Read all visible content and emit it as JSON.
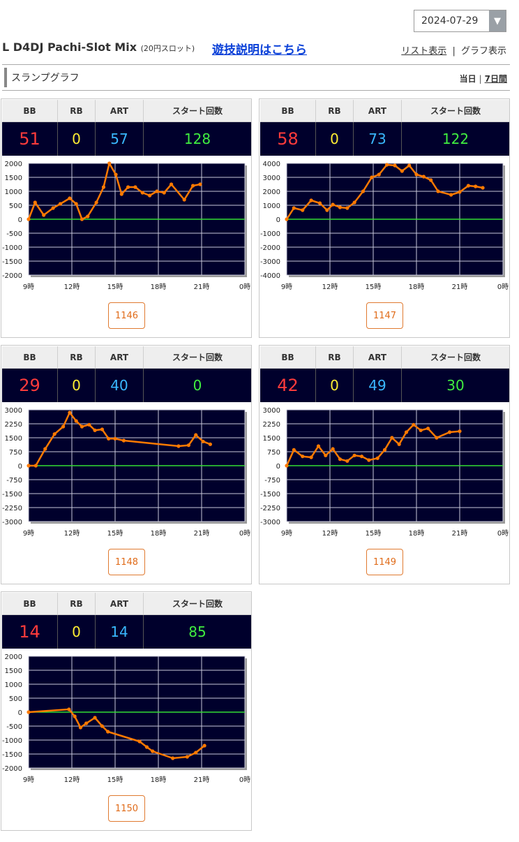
{
  "date_select": {
    "value": "2024-07-29",
    "arrow_glyph": "▼"
  },
  "header": {
    "machine_name": "L D4DJ Pachi-Slot Mix",
    "machine_sub": "(20円スロット)",
    "help_link": "遊技説明はこちら",
    "list_view": "リスト表示",
    "graph_view": "グラフ表示",
    "separator": "|"
  },
  "section": {
    "title": "スランプグラフ",
    "range_today": "当日",
    "range_7days": "7日間",
    "separator": "|"
  },
  "table_headers": {
    "bb": "BB",
    "rb": "RB",
    "art": "ART",
    "start": "スタート回数"
  },
  "colors": {
    "bb": "#ff3b3b",
    "rb": "#ffee33",
    "art": "#3ab8ff",
    "start": "#40ee40",
    "line": "#ff7a00",
    "zero_line": "#33dd33",
    "plot_bg": "#00002c"
  },
  "x_axis_labels": [
    "9時",
    "12時",
    "15時",
    "18時",
    "21時",
    "0時"
  ],
  "machines": [
    {
      "number": "1146",
      "bb": "51",
      "rb": "0",
      "art": "57",
      "start": "128",
      "chart_data": {
        "type": "line",
        "x_unit": "hours from 9時",
        "ylim": [
          -2000,
          2000
        ],
        "y_ticks": [
          2000,
          1500,
          1000,
          500,
          0,
          -500,
          -1000,
          -1500,
          -2000
        ],
        "points": [
          [
            0,
            0
          ],
          [
            0.45,
            600
          ],
          [
            1.05,
            150
          ],
          [
            1.7,
            400
          ],
          [
            2.2,
            550
          ],
          [
            2.85,
            750
          ],
          [
            3.3,
            550
          ],
          [
            3.7,
            0
          ],
          [
            4.1,
            100
          ],
          [
            4.7,
            600
          ],
          [
            5.2,
            1150
          ],
          [
            5.6,
            2000
          ],
          [
            6.05,
            1600
          ],
          [
            6.45,
            900
          ],
          [
            6.9,
            1150
          ],
          [
            7.4,
            1150
          ],
          [
            7.9,
            950
          ],
          [
            8.4,
            850
          ],
          [
            8.9,
            1000
          ],
          [
            9.4,
            950
          ],
          [
            9.9,
            1250
          ],
          [
            10.8,
            700
          ],
          [
            11.4,
            1200
          ],
          [
            11.9,
            1250
          ]
        ]
      }
    },
    {
      "number": "1147",
      "bb": "58",
      "rb": "0",
      "art": "73",
      "start": "122",
      "chart_data": {
        "type": "line",
        "x_unit": "hours from 9時",
        "ylim": [
          -4000,
          4000
        ],
        "y_ticks": [
          4000,
          3000,
          2000,
          1000,
          0,
          -1000,
          -2000,
          -3000,
          -4000
        ],
        "points": [
          [
            0,
            0
          ],
          [
            0.5,
            800
          ],
          [
            1.1,
            650
          ],
          [
            1.7,
            1350
          ],
          [
            2.3,
            1150
          ],
          [
            2.8,
            650
          ],
          [
            3.2,
            1050
          ],
          [
            3.7,
            850
          ],
          [
            4.2,
            800
          ],
          [
            4.7,
            1200
          ],
          [
            5.3,
            2000
          ],
          [
            5.9,
            3000
          ],
          [
            6.4,
            3200
          ],
          [
            6.95,
            3900
          ],
          [
            7.5,
            3850
          ],
          [
            8.0,
            3450
          ],
          [
            8.5,
            3850
          ],
          [
            9.0,
            3200
          ],
          [
            9.5,
            3050
          ],
          [
            10.0,
            2800
          ],
          [
            10.5,
            2000
          ],
          [
            11.4,
            1750
          ],
          [
            12.0,
            1950
          ],
          [
            12.6,
            2400
          ],
          [
            13.1,
            2350
          ],
          [
            13.6,
            2250
          ]
        ]
      }
    },
    {
      "number": "1148",
      "bb": "29",
      "rb": "0",
      "art": "40",
      "start": "0",
      "chart_data": {
        "type": "line",
        "x_unit": "hours from 9時",
        "ylim": [
          -3000,
          3000
        ],
        "y_ticks": [
          3000,
          2250,
          1500,
          750,
          0,
          -750,
          -1500,
          -2250,
          -3000
        ],
        "points": [
          [
            0,
            0
          ],
          [
            0.5,
            0
          ],
          [
            1.15,
            900
          ],
          [
            1.8,
            1700
          ],
          [
            2.4,
            2100
          ],
          [
            2.85,
            2850
          ],
          [
            3.3,
            2400
          ],
          [
            3.7,
            2100
          ],
          [
            4.2,
            2200
          ],
          [
            4.6,
            1900
          ],
          [
            5.1,
            1950
          ],
          [
            5.55,
            1450
          ],
          [
            6.0,
            1450
          ],
          [
            6.6,
            1350
          ],
          [
            10.4,
            1050
          ],
          [
            11.1,
            1100
          ],
          [
            11.6,
            1650
          ],
          [
            12.1,
            1300
          ],
          [
            12.6,
            1150
          ]
        ]
      }
    },
    {
      "number": "1149",
      "bb": "42",
      "rb": "0",
      "art": "49",
      "start": "30",
      "chart_data": {
        "type": "line",
        "x_unit": "hours from 9時",
        "ylim": [
          -3000,
          3000
        ],
        "y_ticks": [
          3000,
          2250,
          1500,
          750,
          0,
          -750,
          -1500,
          -2250,
          -3000
        ],
        "points": [
          [
            0,
            0
          ],
          [
            0.5,
            850
          ],
          [
            1.1,
            500
          ],
          [
            1.7,
            450
          ],
          [
            2.2,
            1050
          ],
          [
            2.7,
            550
          ],
          [
            3.2,
            900
          ],
          [
            3.7,
            350
          ],
          [
            4.2,
            250
          ],
          [
            4.7,
            550
          ],
          [
            5.2,
            500
          ],
          [
            5.7,
            300
          ],
          [
            6.3,
            400
          ],
          [
            6.8,
            850
          ],
          [
            7.3,
            1500
          ],
          [
            7.8,
            1150
          ],
          [
            8.3,
            1800
          ],
          [
            8.8,
            2200
          ],
          [
            9.3,
            1900
          ],
          [
            9.8,
            2000
          ],
          [
            10.4,
            1500
          ],
          [
            11.3,
            1800
          ],
          [
            12.0,
            1850
          ]
        ]
      }
    },
    {
      "number": "1150",
      "bb": "14",
      "rb": "0",
      "art": "14",
      "start": "85",
      "chart_data": {
        "type": "line",
        "x_unit": "hours from 9時",
        "ylim": [
          -2000,
          2000
        ],
        "y_ticks": [
          2000,
          1500,
          1000,
          500,
          0,
          -500,
          -1000,
          -1500,
          -2000
        ],
        "points": [
          [
            0,
            0
          ],
          [
            2.8,
            100
          ],
          [
            3.2,
            -150
          ],
          [
            3.6,
            -550
          ],
          [
            4.0,
            -400
          ],
          [
            4.6,
            -200
          ],
          [
            5.1,
            -500
          ],
          [
            5.5,
            -700
          ],
          [
            7.7,
            -1050
          ],
          [
            8.2,
            -1250
          ],
          [
            8.6,
            -1400
          ],
          [
            10.0,
            -1650
          ],
          [
            11.0,
            -1600
          ],
          [
            11.6,
            -1450
          ],
          [
            12.2,
            -1200
          ]
        ]
      }
    }
  ]
}
